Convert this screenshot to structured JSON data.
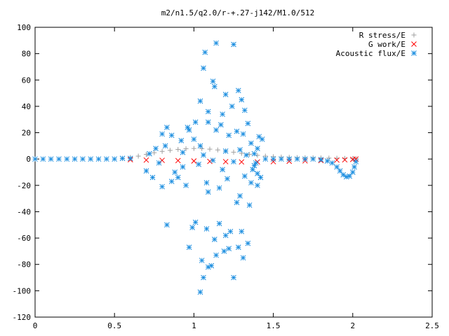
{
  "chart_data": {
    "type": "scatter",
    "title": "m2/n1.5/q2.0/r-+.27-j142/M1.0/512",
    "xlim": [
      0,
      2.5
    ],
    "ylim": [
      -120,
      100
    ],
    "x_ticks": [
      0,
      0.5,
      1,
      1.5,
      2,
      2.5
    ],
    "x_tick_labels": [
      "0",
      "0.5",
      "1",
      "1.5",
      "2",
      "2.5"
    ],
    "y_ticks": [
      100,
      80,
      60,
      40,
      20,
      0,
      -20,
      -40,
      -60,
      -80,
      -100,
      -120
    ],
    "y_tick_labels": [
      "100",
      "80",
      "60",
      "40",
      "20",
      "0",
      "-20",
      "-40",
      "-60",
      "-80",
      "-100",
      "-120"
    ],
    "grid": false,
    "legend_position": "top-right",
    "series": [
      {
        "name": "R stress/E",
        "marker": "plus",
        "color": "#a0a0a0",
        "points": [
          [
            0.55,
            0.4
          ],
          [
            0.6,
            1.2
          ],
          [
            0.65,
            2.2
          ],
          [
            0.7,
            3.5
          ],
          [
            0.75,
            4.8
          ],
          [
            0.8,
            5.8
          ],
          [
            0.85,
            6.6
          ],
          [
            0.9,
            7.3
          ],
          [
            0.95,
            7.8
          ],
          [
            1.0,
            8.0
          ],
          [
            1.05,
            7.9
          ],
          [
            1.1,
            7.5
          ],
          [
            1.15,
            6.9
          ],
          [
            1.2,
            6.1
          ],
          [
            1.25,
            5.2
          ],
          [
            1.3,
            4.3
          ],
          [
            1.35,
            3.5
          ],
          [
            1.4,
            2.8
          ],
          [
            1.45,
            2.2
          ],
          [
            1.5,
            1.8
          ],
          [
            1.55,
            1.5
          ],
          [
            1.6,
            1.3
          ],
          [
            1.65,
            1.1
          ],
          [
            1.7,
            1.0
          ],
          [
            1.75,
            0.9
          ],
          [
            1.8,
            0.8
          ],
          [
            1.85,
            0.7
          ],
          [
            1.9,
            0.6
          ],
          [
            1.95,
            0.5
          ],
          [
            2.0,
            0.4
          ],
          [
            2.02,
            0.3
          ]
        ]
      },
      {
        "name": "G work/E",
        "marker": "cross",
        "color": "#ff0000",
        "points": [
          [
            0.6,
            -0.5
          ],
          [
            0.7,
            -0.8
          ],
          [
            0.8,
            -1.0
          ],
          [
            0.9,
            -1.2
          ],
          [
            1.0,
            -1.5
          ],
          [
            1.1,
            -1.8
          ],
          [
            1.2,
            -2.0
          ],
          [
            1.3,
            -2.2
          ],
          [
            1.4,
            -2.2
          ],
          [
            1.5,
            -2.0
          ],
          [
            1.6,
            -1.7
          ],
          [
            1.7,
            -1.4
          ],
          [
            1.8,
            -1.1
          ],
          [
            1.9,
            -0.8
          ],
          [
            1.95,
            -0.6
          ],
          [
            2.0,
            -0.3
          ],
          [
            2.02,
            0.0
          ]
        ]
      },
      {
        "name": "Acoustic flux/E",
        "marker": "star",
        "color": "#1e8fe0",
        "points": [
          [
            1.04,
            -101
          ],
          [
            1.06,
            -90
          ],
          [
            1.25,
            -90
          ],
          [
            1.09,
            -82
          ],
          [
            1.11,
            -81
          ],
          [
            1.05,
            -77
          ],
          [
            1.31,
            -75
          ],
          [
            1.14,
            -73
          ],
          [
            1.19,
            -70
          ],
          [
            1.22,
            -68
          ],
          [
            1.28,
            -67
          ],
          [
            0.97,
            -67
          ],
          [
            1.34,
            -64
          ],
          [
            1.13,
            -61
          ],
          [
            1.2,
            -58
          ],
          [
            1.23,
            -55
          ],
          [
            1.3,
            -55
          ],
          [
            1.08,
            -53
          ],
          [
            0.99,
            -52
          ],
          [
            0.83,
            -50
          ],
          [
            1.16,
            -49
          ],
          [
            1.01,
            -48
          ],
          [
            1.35,
            -35
          ],
          [
            1.27,
            -33
          ],
          [
            1.29,
            -28
          ],
          [
            1.09,
            -25
          ],
          [
            1.16,
            -22
          ],
          [
            1.36,
            -18
          ],
          [
            1.08,
            -18
          ],
          [
            1.21,
            -15
          ],
          [
            1.32,
            -13
          ],
          [
            0.88,
            -10
          ],
          [
            1.18,
            -8
          ],
          [
            0.93,
            -6
          ],
          [
            1.38,
            -5
          ],
          [
            1.03,
            -4
          ],
          [
            0.78,
            -3
          ],
          [
            1.25,
            -2
          ],
          [
            1.12,
            -1
          ],
          [
            0.95,
            -20
          ],
          [
            0.8,
            -21
          ],
          [
            0.86,
            -17
          ],
          [
            0.74,
            -14
          ],
          [
            0.9,
            -14
          ],
          [
            0.7,
            -9
          ],
          [
            1.4,
            -11
          ],
          [
            1.4,
            -20
          ],
          [
            1.42,
            -14
          ],
          [
            1.37,
            -8
          ],
          [
            1.39,
            -3
          ],
          [
            0.72,
            4
          ],
          [
            0.82,
            10
          ],
          [
            0.86,
            18
          ],
          [
            0.92,
            14
          ],
          [
            0.97,
            22
          ],
          [
            1.0,
            15
          ],
          [
            1.04,
            10
          ],
          [
            1.09,
            28
          ],
          [
            1.14,
            22
          ],
          [
            1.17,
            26
          ],
          [
            1.22,
            18
          ],
          [
            1.27,
            21
          ],
          [
            1.31,
            19
          ],
          [
            1.36,
            12
          ],
          [
            1.41,
            17
          ],
          [
            1.4,
            8
          ],
          [
            1.38,
            4
          ],
          [
            0.76,
            8
          ],
          [
            0.93,
            5
          ],
          [
            1.06,
            3
          ],
          [
            1.2,
            6
          ],
          [
            1.29,
            7
          ],
          [
            1.33,
            3
          ],
          [
            1.04,
            44
          ],
          [
            1.06,
            69
          ],
          [
            1.07,
            81
          ],
          [
            1.12,
            59
          ],
          [
            1.13,
            55
          ],
          [
            1.14,
            88
          ],
          [
            1.2,
            49
          ],
          [
            1.25,
            87
          ],
          [
            1.28,
            52
          ],
          [
            1.3,
            45
          ],
          [
            1.32,
            37
          ],
          [
            1.18,
            34
          ],
          [
            1.09,
            36
          ],
          [
            1.24,
            40
          ],
          [
            1.34,
            27
          ],
          [
            1.01,
            28
          ],
          [
            0.96,
            24
          ],
          [
            0.83,
            24
          ],
          [
            0.8,
            19
          ],
          [
            1.43,
            15
          ],
          [
            0.0,
            0
          ],
          [
            0.05,
            0
          ],
          [
            0.1,
            0
          ],
          [
            0.15,
            0
          ],
          [
            0.2,
            0
          ],
          [
            0.25,
            0
          ],
          [
            0.3,
            0
          ],
          [
            0.35,
            0
          ],
          [
            0.4,
            0
          ],
          [
            0.45,
            0
          ],
          [
            0.5,
            0
          ],
          [
            0.55,
            0.5
          ],
          [
            0.6,
            0.5
          ],
          [
            1.45,
            0
          ],
          [
            1.5,
            0
          ],
          [
            1.55,
            0
          ],
          [
            1.6,
            0
          ],
          [
            1.65,
            0
          ],
          [
            1.7,
            0
          ],
          [
            1.75,
            0
          ],
          [
            1.8,
            -0.5
          ],
          [
            1.84,
            -1.5
          ],
          [
            1.87,
            -3
          ],
          [
            1.9,
            -6
          ],
          [
            1.92,
            -9
          ],
          [
            1.94,
            -12
          ],
          [
            1.96,
            -13.5
          ],
          [
            1.98,
            -13
          ],
          [
            2.0,
            -10
          ],
          [
            2.01,
            -6
          ],
          [
            2.02,
            -2
          ]
        ]
      }
    ]
  }
}
